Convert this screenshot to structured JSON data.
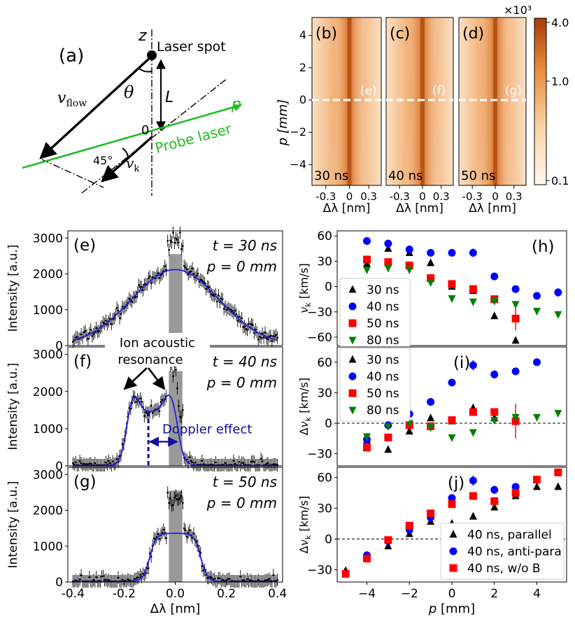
{
  "figure": {
    "panel_a": {
      "label": "(a)",
      "texts": {
        "z": "z",
        "laser_spot": "Laser spot",
        "v_flow": "v",
        "v_flow_sub": "flow",
        "theta": "θ",
        "L": "L",
        "p": "p",
        "zero": "0",
        "probe_laser": "Probe laser",
        "angle45": "45°",
        "vk": "v",
        "vk_sub": "k"
      },
      "colors": {
        "probe": "#22bb22",
        "ink": "#000000"
      }
    },
    "images": {
      "panels": [
        {
          "label": "(b)",
          "time": "30 ns",
          "cut": "(e)"
        },
        {
          "label": "(c)",
          "time": "40 ns",
          "cut": "(f)"
        },
        {
          "label": "(d)",
          "time": "50 ns",
          "cut": "(g)"
        }
      ],
      "ylabel": "p [mm]",
      "xlabel": "Δλ [nm]",
      "xticks": [
        "-0.3",
        "0",
        "0.3"
      ],
      "yticks": [
        4,
        2,
        0,
        -2,
        -4
      ],
      "colorbar": {
        "exponent": "×10³",
        "ticks": [
          "4.0",
          "1.0",
          "0.1"
        ],
        "scale": "log"
      }
    }
  },
  "chart_data": [
    {
      "id": "e",
      "type": "line",
      "panel_label": "(e)",
      "t_label": "t = 30 ns",
      "p_label": "p = 0 mm",
      "ylabel": "Intensity [a.u.]",
      "xlabel": "",
      "xlim": [
        -0.42,
        0.42
      ],
      "ylim": [
        0,
        3200
      ],
      "yticks": [
        0,
        1000,
        2000,
        3000
      ],
      "xticks": [],
      "gray_band": [
        -0.025,
        0.028
      ],
      "fit": {
        "amp": 2100,
        "center": 0.0,
        "sigma": 0.17,
        "base": 20
      },
      "data_trend": {
        "amp": 2050,
        "center": 0.0,
        "sigma": 0.17,
        "base": 40,
        "noise": 130,
        "npoints": 160
      },
      "fit_color": "#1f1fe6"
    },
    {
      "id": "f",
      "type": "line",
      "panel_label": "(f)",
      "t_label": "t = 40 ns",
      "p_label": "p = 0 mm",
      "ylabel": "Intensity [a.u.]",
      "xlabel": "",
      "xlim": [
        -0.42,
        0.42
      ],
      "ylim": [
        0,
        3200
      ],
      "yticks": [
        0,
        1000,
        2000,
        3000
      ],
      "xticks": [],
      "gray_band": [
        -0.025,
        0.028
      ],
      "fit": {
        "type": "iaw",
        "left_peak": [
          -0.165,
          1950
        ],
        "right_peak": [
          -0.02,
          1950
        ],
        "dip": [
          -0.095,
          1450
        ]
      },
      "annotations": {
        "ion_acoustic": "Ion acoustic",
        "resonance": "resonance",
        "doppler": "Doppler effect",
        "doppler_from": -0.105,
        "doppler_to": -0.02
      },
      "fit_color": "#1f1fe6"
    },
    {
      "id": "g",
      "type": "line",
      "panel_label": "(g)",
      "t_label": "t = 50 ns",
      "p_label": "p = 0 mm",
      "ylabel": "Intensity [a.u.]",
      "xlabel": "Δλ [nm]",
      "xlim": [
        -0.42,
        0.42
      ],
      "ylim": [
        0,
        3200
      ],
      "yticks": [
        0,
        1000,
        2000,
        3000
      ],
      "xticks": [
        -0.4,
        -0.2,
        0.0,
        0.2,
        0.4
      ],
      "xticklabels": [
        "-0.4",
        "-0.2",
        "0.0",
        "0.2",
        "0.4"
      ],
      "gray_band": [
        -0.025,
        0.028
      ],
      "fit": {
        "type": "flat",
        "plateau": 1350,
        "center": 0.0,
        "halfwidth": 0.1
      },
      "fit_color": "#1f1fe6"
    },
    {
      "id": "h",
      "type": "scatter",
      "panel_label": "(h)",
      "ylabel": "v_k [km/s]",
      "xlabel": "",
      "xlim": [
        -5.4,
        5.4
      ],
      "ylim": [
        -70,
        66
      ],
      "yticks": [
        60,
        30,
        0,
        -30,
        -60
      ],
      "xticks": [],
      "legend_position": "middle-left",
      "series": [
        {
          "name": "30 ns",
          "marker": "triangle-up",
          "color": "#000000",
          "x": [
            -4,
            -3,
            -2,
            -1,
            0,
            1,
            2,
            3
          ],
          "y": [
            27,
            45,
            40,
            28,
            0,
            -5,
            -35,
            -64
          ],
          "err": [
            0,
            0,
            0,
            0,
            0,
            0,
            0,
            4
          ]
        },
        {
          "name": "40 ns",
          "marker": "circle",
          "color": "#0000ff",
          "x": [
            -4,
            -3,
            -2,
            -1,
            0,
            1,
            2,
            3,
            4,
            5
          ],
          "y": [
            54,
            51,
            44,
            40,
            40,
            40,
            12,
            -3,
            -11,
            -7
          ],
          "err": [
            0,
            0,
            0,
            0,
            0,
            5,
            0,
            0,
            0,
            5
          ]
        },
        {
          "name": "50 ns",
          "marker": "square",
          "color": "#ff0000",
          "x": [
            -4,
            -3,
            -2,
            -1,
            0,
            1,
            2,
            3
          ],
          "y": [
            32,
            29,
            25,
            10,
            3,
            -3,
            -15,
            -38
          ],
          "err": [
            0,
            0,
            0,
            0,
            0,
            0,
            0,
            14
          ]
        },
        {
          "name": "80 ns",
          "marker": "triangle-down",
          "color": "#008000",
          "x": [
            -4,
            -3,
            -2,
            -1,
            0,
            1,
            2,
            3,
            4,
            5
          ],
          "y": [
            20,
            22,
            20,
            5,
            -14,
            -18,
            -17,
            -21,
            -29,
            -33
          ],
          "err": [
            0,
            0,
            0,
            0,
            0,
            0,
            0,
            0,
            0,
            0
          ]
        }
      ]
    },
    {
      "id": "i",
      "type": "scatter",
      "panel_label": "(i)",
      "ylabel": "Δv_k [km/s]",
      "xlabel": "",
      "xlim": [
        -5.4,
        5.4
      ],
      "ylim": [
        -42,
        75
      ],
      "yticks": [
        60,
        30,
        0,
        -30
      ],
      "xticks": [],
      "zero_line": true,
      "legend_position": "top-left",
      "series": [
        {
          "name": "30 ns",
          "marker": "triangle-up",
          "color": "#000000",
          "x": [
            -4,
            -3,
            -2,
            -1,
            0,
            1,
            2,
            3
          ],
          "y": [
            -17,
            -26,
            -8,
            5,
            2,
            15,
            5,
            2
          ],
          "err": [
            0,
            0,
            0,
            0,
            0,
            0,
            0,
            0
          ]
        },
        {
          "name": "40 ns",
          "marker": "circle",
          "color": "#0000ff",
          "x": [
            -4,
            -3,
            -2,
            -1,
            0,
            1,
            2,
            3,
            4
          ],
          "y": [
            -16,
            -2,
            9,
            21,
            40,
            57,
            48,
            51,
            60
          ],
          "err": [
            0,
            0,
            0,
            0,
            0,
            5,
            4,
            0,
            0
          ]
        },
        {
          "name": "50 ns",
          "marker": "square",
          "color": "#ff0000",
          "x": [
            -4,
            -3,
            -2,
            -1,
            0,
            1,
            2,
            3
          ],
          "y": [
            -24,
            -14,
            -2,
            -3,
            3,
            11,
            11,
            2
          ],
          "err": [
            0,
            0,
            0,
            0,
            0,
            0,
            0,
            17
          ]
        },
        {
          "name": "80 ns",
          "marker": "triangle-down",
          "color": "#008000",
          "x": [
            -4,
            -3,
            -2,
            -1,
            0,
            1,
            2,
            3,
            4,
            5
          ],
          "y": [
            -13,
            -3,
            0,
            -4,
            -14,
            -9,
            3,
            6,
            6,
            10
          ],
          "err": [
            0,
            0,
            0,
            0,
            0,
            0,
            0,
            0,
            0,
            0
          ]
        }
      ]
    },
    {
      "id": "j",
      "type": "scatter",
      "panel_label": "(j)",
      "ylabel": "Δv_k [km/s]",
      "xlabel": "p [mm]",
      "xlim": [
        -5.4,
        5.4
      ],
      "ylim": [
        -42,
        70
      ],
      "yticks": [
        60,
        30,
        0,
        -30
      ],
      "xticks": [
        -4,
        -2,
        0,
        2,
        4
      ],
      "zero_line": true,
      "legend_position": "bottom-right",
      "series": [
        {
          "name": "40 ns, parallel",
          "marker": "triangle-up",
          "color": "#000000",
          "x": [
            -5,
            -4,
            -3,
            -2,
            -1,
            0,
            1,
            2,
            3,
            4,
            5
          ],
          "y": [
            -31,
            -16,
            -7,
            5,
            17,
            15,
            22,
            31,
            42,
            51,
            51
          ],
          "err": [
            0,
            0,
            0,
            0,
            0,
            0,
            0,
            0,
            0,
            0,
            0
          ]
        },
        {
          "name": "40 ns, anti-para",
          "marker": "circle",
          "color": "#0000ff",
          "x": [
            -4,
            -3,
            -2,
            -1,
            0,
            1,
            2,
            3,
            4
          ],
          "y": [
            -16,
            -2,
            9,
            21,
            40,
            57,
            48,
            51,
            58
          ],
          "err": [
            0,
            0,
            0,
            0,
            0,
            5,
            4,
            0,
            0
          ]
        },
        {
          "name": "40 ns, w/o B",
          "marker": "square",
          "color": "#ff0000",
          "x": [
            -5,
            -4,
            -3,
            -2,
            -1,
            0,
            1,
            2,
            3,
            4,
            5
          ],
          "y": [
            -34,
            -19,
            -1,
            13,
            25,
            34,
            42,
            37,
            45,
            58,
            65
          ],
          "err": [
            0,
            0,
            0,
            0,
            0,
            0,
            0,
            0,
            0,
            0,
            0
          ]
        }
      ]
    }
  ]
}
